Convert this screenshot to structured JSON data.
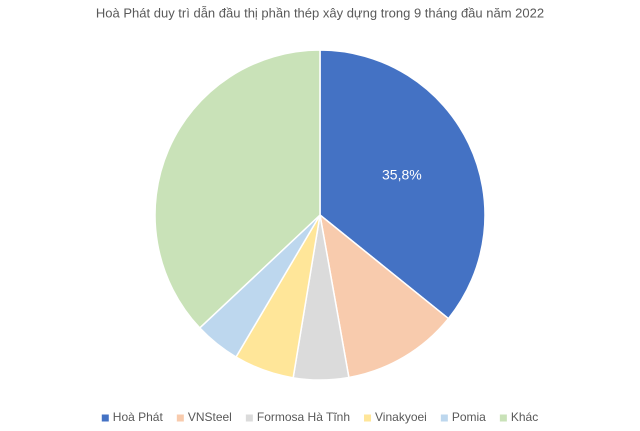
{
  "chart_data": {
    "type": "pie",
    "title": "Hoà Phát duy trì dẫn đầu thị phần thép xây dựng trong 9 tháng đầu năm 2022",
    "categories": [
      "Hoà Phát",
      "VNSteel",
      "Formosa Hà Tĩnh",
      "Vinakyoei",
      "Pomia",
      "Khác"
    ],
    "values": [
      35.8,
      11.4,
      5.4,
      5.9,
      4.5,
      37.0
    ],
    "value_labels": [
      "35,8%",
      null,
      null,
      null,
      null,
      null
    ],
    "colors": [
      "#4472c4",
      "#f8cbad",
      "#dbdbdb",
      "#ffe699",
      "#bdd7ee",
      "#c9e2b8"
    ],
    "legend": "bottom"
  }
}
